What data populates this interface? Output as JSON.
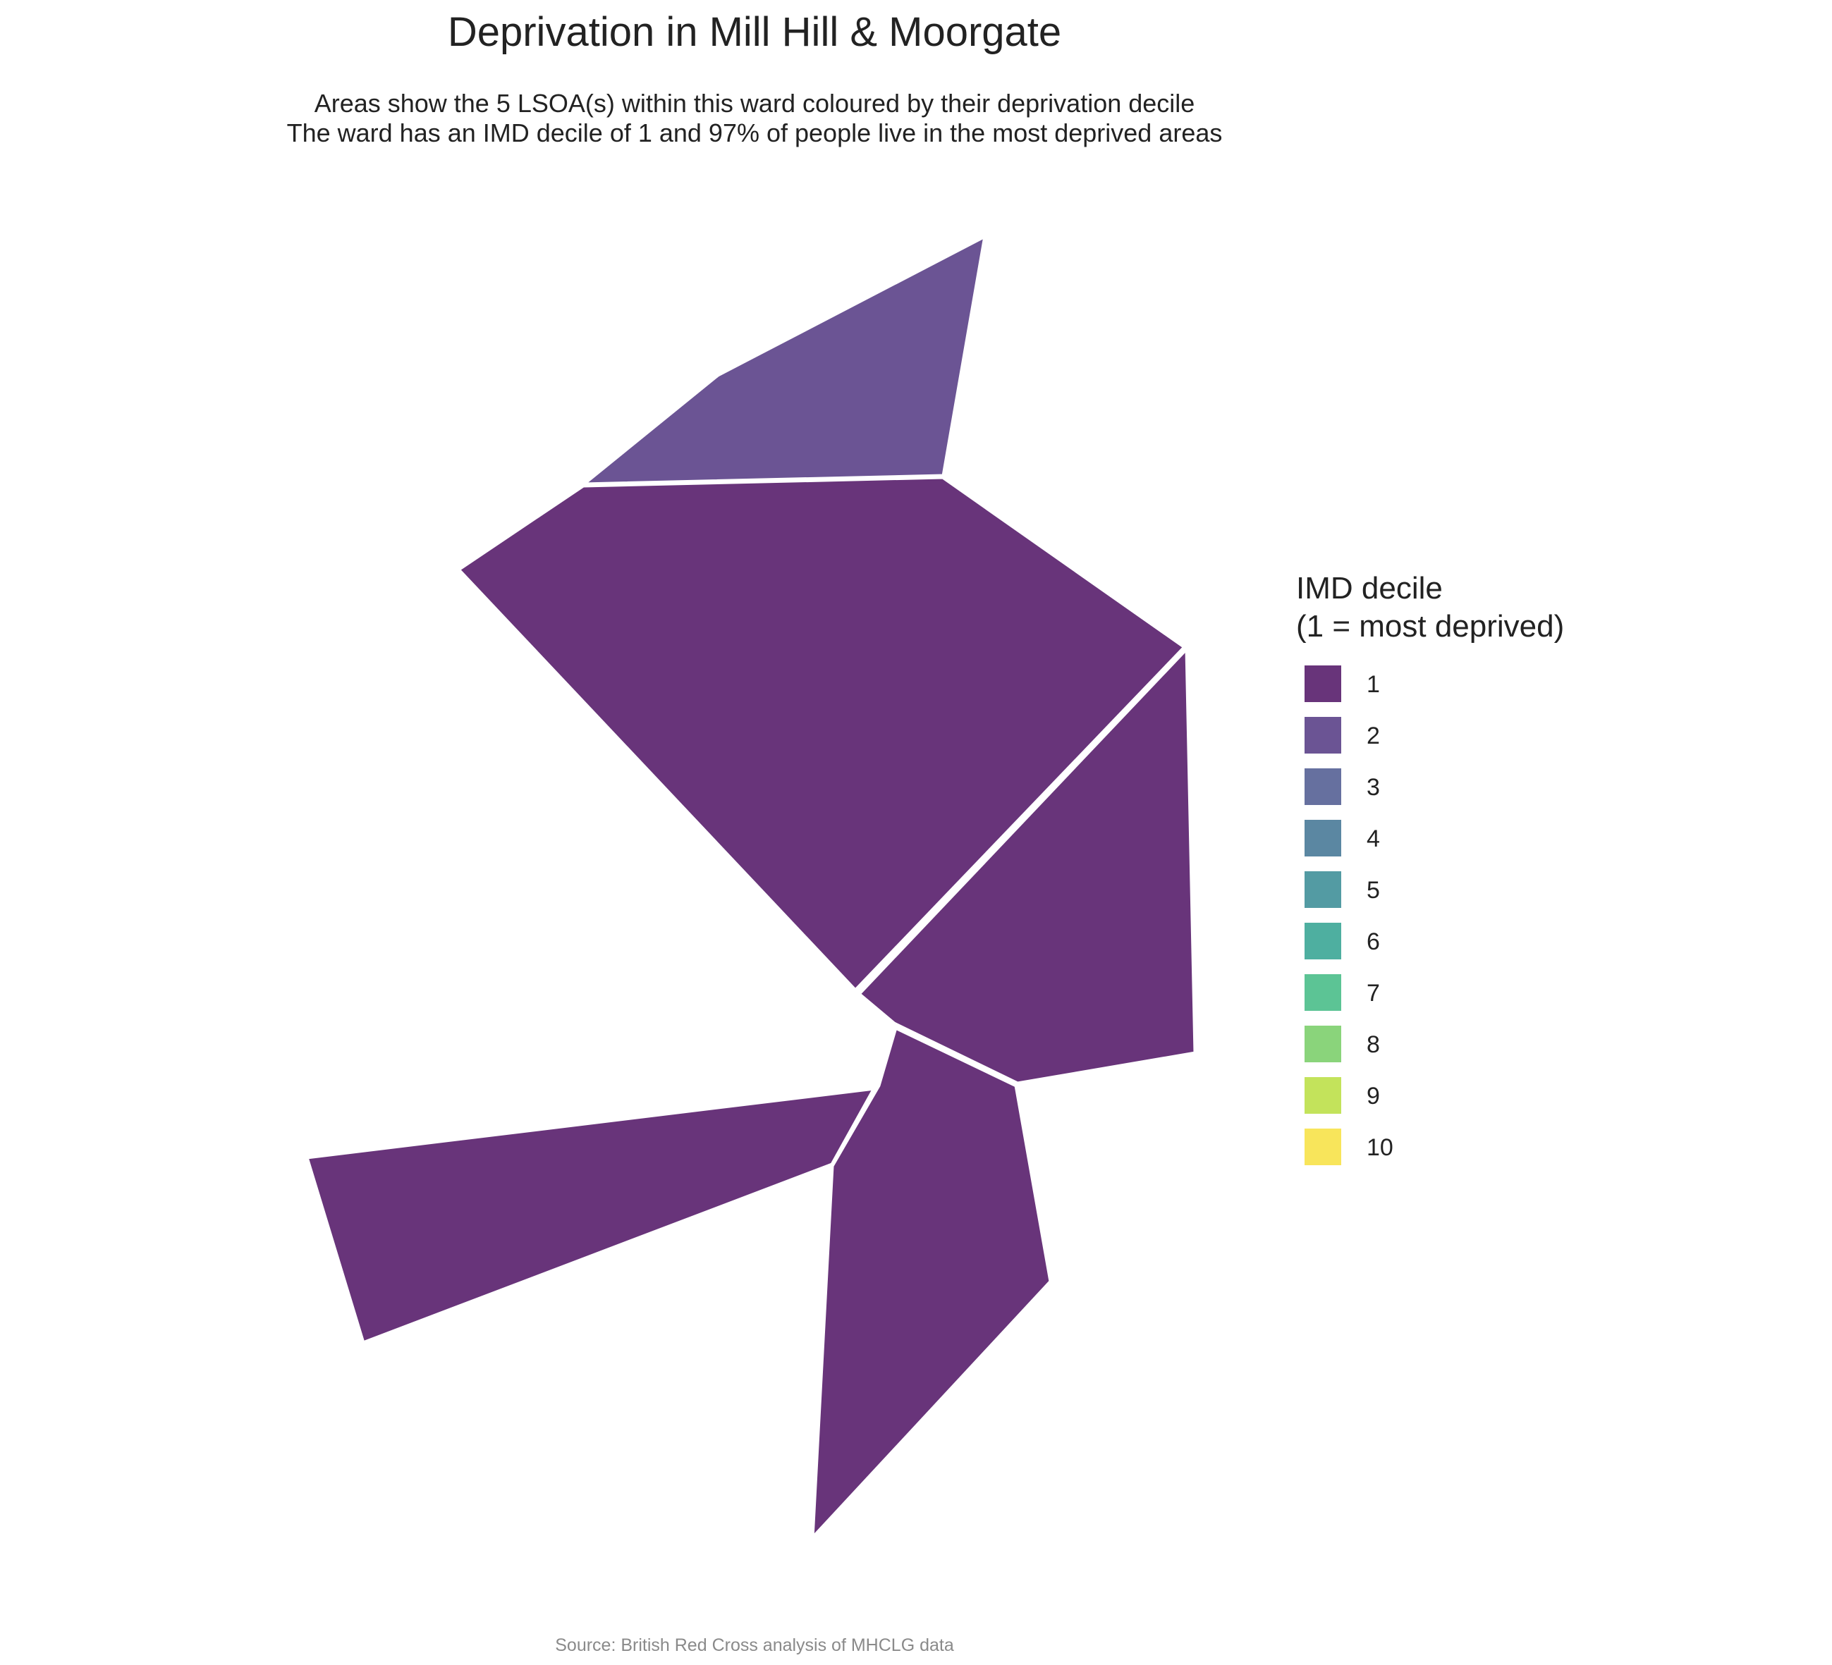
{
  "title": "Deprivation in Mill Hill & Moorgate",
  "subtitle_lines": [
    "Areas show the 5 LSOA(s) within this ward coloured by their deprivation decile",
    "The ward has an IMD decile of 1 and 97% of people live in the most deprived areas"
  ],
  "legend": {
    "title": "IMD decile\n(1 = most deprived)",
    "items": [
      {
        "label": "1",
        "color": "#68347a"
      },
      {
        "label": "2",
        "color": "#6b5494"
      },
      {
        "label": "3",
        "color": "#66709f"
      },
      {
        "label": "4",
        "color": "#5b87a2"
      },
      {
        "label": "5",
        "color": "#539ba3"
      },
      {
        "label": "6",
        "color": "#4eafa0"
      },
      {
        "label": "7",
        "color": "#5cc495"
      },
      {
        "label": "8",
        "color": "#8ad47b"
      },
      {
        "label": "9",
        "color": "#c3e35b"
      },
      {
        "label": "10",
        "color": "#f8e55b"
      }
    ]
  },
  "areas": [
    {
      "decile": 2
    },
    {
      "decile": 1
    },
    {
      "decile": 1
    },
    {
      "decile": 1
    },
    {
      "decile": 1
    }
  ],
  "caption": "Source: British Red Cross analysis of MHCLG data"
}
